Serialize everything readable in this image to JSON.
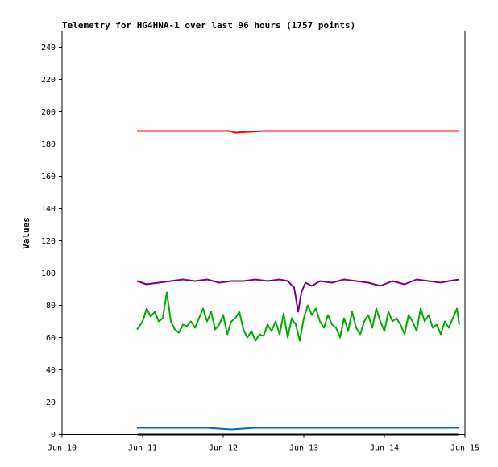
{
  "chart_data": {
    "type": "line",
    "title": "Telemetry for HG4HNA-1 over last 96 hours (1757 points)",
    "xlabel": "",
    "ylabel": "Values",
    "ylim": [
      0,
      250
    ],
    "xlim": [
      10,
      15
    ],
    "x_ticks": [
      10,
      11,
      12,
      13,
      14,
      15
    ],
    "x_tick_labels": [
      "Jun 10",
      "Jun 11",
      "Jun 12",
      "Jun 13",
      "Jun 14",
      "Jun 15"
    ],
    "y_ticks": [
      0,
      20,
      40,
      60,
      80,
      100,
      120,
      140,
      160,
      180,
      200,
      220,
      240
    ],
    "grid": false,
    "legend": "none",
    "series": [
      {
        "color": "#ff0000",
        "x": [
          10.93,
          11.25,
          11.5,
          11.75,
          12.08,
          12.15,
          12.5,
          12.83,
          13.1,
          13.4,
          13.7,
          14.0,
          14.3,
          14.62,
          14.93
        ],
        "y": [
          188,
          188,
          188,
          188,
          188,
          187,
          188,
          188,
          188,
          188,
          188,
          188,
          188,
          188,
          188
        ]
      },
      {
        "color": "#800080",
        "x": [
          10.93,
          11.05,
          11.2,
          11.35,
          11.5,
          11.65,
          11.8,
          11.95,
          12.1,
          12.25,
          12.4,
          12.55,
          12.7,
          12.8,
          12.88,
          12.93,
          12.97,
          13.02,
          13.1,
          13.2,
          13.35,
          13.5,
          13.65,
          13.8,
          13.95,
          14.1,
          14.25,
          14.4,
          14.55,
          14.7,
          14.8,
          14.93
        ],
        "y": [
          95,
          93,
          94,
          95,
          96,
          95,
          96,
          94,
          95,
          95,
          96,
          95,
          96,
          95,
          91,
          76,
          88,
          94,
          92,
          95,
          94,
          96,
          95,
          94,
          92,
          95,
          93,
          96,
          95,
          94,
          95,
          96
        ]
      },
      {
        "color": "#00aa00",
        "x": [
          10.93,
          11.0,
          11.05,
          11.1,
          11.15,
          11.2,
          11.25,
          11.3,
          11.35,
          11.4,
          11.45,
          11.5,
          11.55,
          11.6,
          11.65,
          11.7,
          11.75,
          11.8,
          11.85,
          11.9,
          11.95,
          12.0,
          12.05,
          12.1,
          12.15,
          12.2,
          12.25,
          12.3,
          12.35,
          12.4,
          12.45,
          12.5,
          12.55,
          12.6,
          12.65,
          12.7,
          12.75,
          12.8,
          12.85,
          12.9,
          12.95,
          13.0,
          13.05,
          13.1,
          13.15,
          13.2,
          13.25,
          13.3,
          13.35,
          13.4,
          13.45,
          13.5,
          13.55,
          13.6,
          13.65,
          13.7,
          13.75,
          13.8,
          13.85,
          13.9,
          13.95,
          14.0,
          14.05,
          14.1,
          14.15,
          14.2,
          14.25,
          14.3,
          14.35,
          14.4,
          14.45,
          14.5,
          14.55,
          14.6,
          14.65,
          14.7,
          14.75,
          14.8,
          14.85,
          14.9,
          14.93
        ],
        "y": [
          65,
          70,
          78,
          73,
          76,
          70,
          72,
          88,
          70,
          65,
          63,
          68,
          67,
          70,
          66,
          72,
          78,
          70,
          76,
          65,
          68,
          74,
          62,
          70,
          72,
          76,
          65,
          60,
          64,
          58,
          62,
          61,
          68,
          64,
          70,
          62,
          75,
          60,
          72,
          68,
          58,
          72,
          80,
          74,
          78,
          70,
          66,
          74,
          68,
          66,
          60,
          72,
          64,
          76,
          66,
          62,
          70,
          74,
          66,
          78,
          70,
          64,
          76,
          70,
          72,
          68,
          62,
          74,
          70,
          64,
          78,
          70,
          74,
          66,
          68,
          62,
          70,
          66,
          72,
          78,
          68
        ]
      },
      {
        "color": "#0066cc",
        "x": [
          10.93,
          11.2,
          11.5,
          11.8,
          12.1,
          12.4,
          12.7,
          13.0,
          13.3,
          13.6,
          13.9,
          14.2,
          14.5,
          14.8,
          14.93
        ],
        "y": [
          4,
          4,
          4,
          4,
          3,
          4,
          4,
          4,
          4,
          4,
          4,
          4,
          4,
          4,
          4
        ]
      },
      {
        "color": "#000000",
        "x": [
          10.93,
          14.93
        ],
        "y": [
          0,
          0
        ]
      }
    ]
  }
}
